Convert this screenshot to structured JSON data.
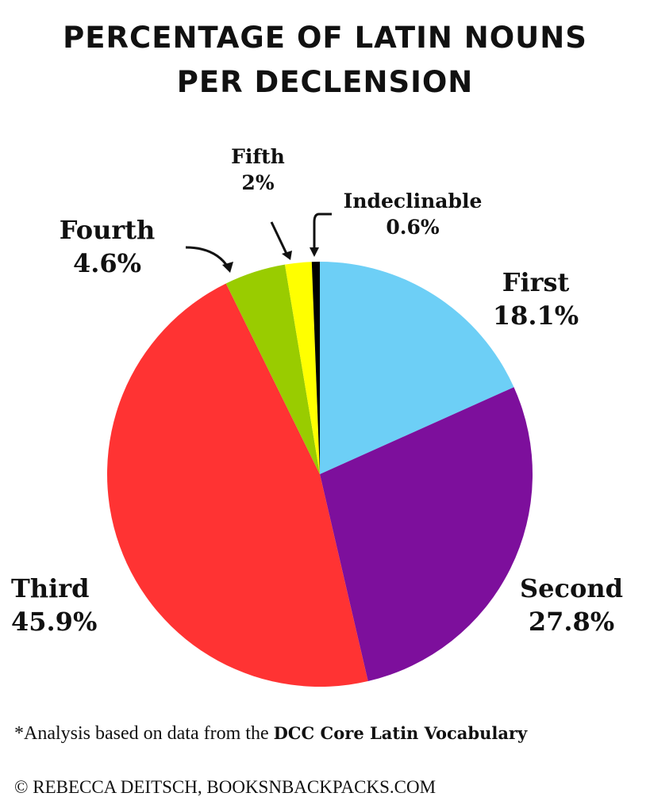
{
  "chart_data": {
    "type": "pie",
    "title": "PERCENTAGE OF LATIN NOUNS PER DECLENSION",
    "slices": [
      {
        "label": "First",
        "value": 18.1,
        "display": "18.1%",
        "color": "#6dcff6"
      },
      {
        "label": "Second",
        "value": 27.8,
        "display": "27.8%",
        "color": "#7d0f9c"
      },
      {
        "label": "Third",
        "value": 45.9,
        "display": "45.9%",
        "color": "#ff3333"
      },
      {
        "label": "Fourth",
        "value": 4.6,
        "display": "4.6%",
        "color": "#99cc00"
      },
      {
        "label": "Fifth",
        "value": 2,
        "display": "2%",
        "color": "#ffff00"
      },
      {
        "label": "Indeclinable",
        "value": 0.6,
        "display": "0.6%",
        "color": "#000000"
      }
    ],
    "start": "top",
    "direction": "clockwise"
  },
  "title_line1": "PERCENTAGE OF LATIN NOUNS",
  "title_line2": "PER DECLENSION",
  "footnote_prefix": "*Analysis based on data from the ",
  "footnote_source": "DCC Core Latin Vocabulary",
  "copyright": "© REBECCA DEITSCH, BOOKSNBACKPACKS.COM"
}
